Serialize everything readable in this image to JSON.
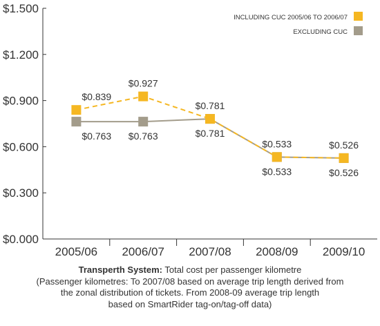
{
  "chart_data": {
    "type": "line",
    "categories": [
      "2005/06",
      "2006/07",
      "2007/08",
      "2008/09",
      "2009/10"
    ],
    "ylim": [
      0,
      1.5
    ],
    "yticks": [
      {
        "value": 0,
        "label": "$0.000"
      },
      {
        "value": 0.3,
        "label": "$0.300"
      },
      {
        "value": 0.6,
        "label": "$0.600"
      },
      {
        "value": 0.9,
        "label": "$0.900"
      },
      {
        "value": 1.2,
        "label": "$1.200"
      },
      {
        "value": 1.5,
        "label": "$1.500"
      }
    ],
    "grid": false,
    "legend_position": "top-right",
    "series": [
      {
        "name": "INCLUDING CUC 2005/06 TO 2006/07",
        "color": "#f5b722",
        "line_style": "dashed",
        "values": [
          0.839,
          0.927,
          0.781,
          0.533,
          0.526
        ],
        "labels": [
          "$0.839",
          "$0.927",
          "$0.781",
          "$0.533",
          "$0.526"
        ]
      },
      {
        "name": "EXCLUDING CUC",
        "color": "#a39c8b",
        "line_style": "solid",
        "values": [
          0.763,
          0.763,
          0.781,
          0.533,
          0.526
        ],
        "labels": [
          "$0.763",
          "$0.763",
          "$0.781",
          "$0.533",
          "$0.526"
        ]
      }
    ]
  },
  "caption": {
    "title_bold": "Transperth System:",
    "title_rest": " Total cost per passenger kilometre",
    "lines": [
      "(Passenger kilometres: To 2007/08 based on average trip length derived from",
      "the zonal distribution of tickets. From 2008-09 average trip length",
      "based on SmartRider tag-on/tag-off data)"
    ]
  }
}
